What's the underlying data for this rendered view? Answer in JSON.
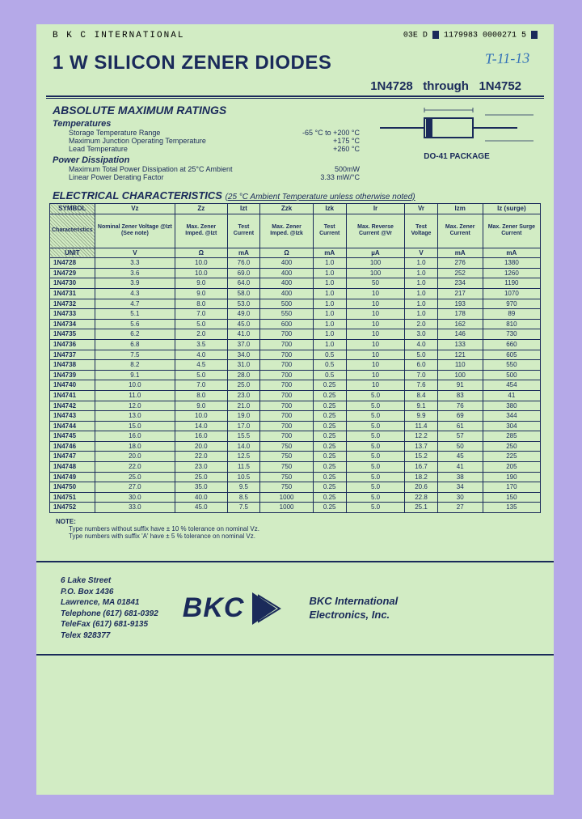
{
  "header": {
    "company": "B K C INTERNATIONAL",
    "doccode": "03E D",
    "barcode": "1179983 0000271 5",
    "handwritten": "T-11-13"
  },
  "title": "1 W SILICON ZENER DIODES",
  "subtitle_a": "1N4728",
  "subtitle_mid": "through",
  "subtitle_b": "1N4752",
  "abs": {
    "title": "ABSOLUTE MAXIMUM RATINGS",
    "temps_label": "Temperatures",
    "temps": [
      {
        "l": "Storage Temperature Range",
        "v": "-65 °C to +200 °C"
      },
      {
        "l": "Maximum Junction Operating Temperature",
        "v": "+175 °C"
      },
      {
        "l": "Lead Temperature",
        "v": "+260 °C"
      }
    ],
    "power_label": "Power Dissipation",
    "power": [
      {
        "l": "Maximum Total Power Dissipation at 25°C Ambient",
        "v": "500mW"
      },
      {
        "l": "Linear Power Derating Factor",
        "v": "3.33 mW/°C"
      }
    ],
    "package": "DO-41 PACKAGE"
  },
  "elec": {
    "title": "ELECTRICAL CHARACTERISTICS",
    "note": "(25 °C Ambient Temperature unless otherwise noted)"
  },
  "table": {
    "symbol_label": "SYMBOL",
    "char_label": "Characteristics",
    "unit_label": "UNIT",
    "symbols": [
      "Vz",
      "Zz",
      "Izt",
      "Zzk",
      "Izk",
      "Ir",
      "Vr",
      "Izm",
      "Iz (surge)"
    ],
    "chars": [
      "Nominal Zener Voltage @Izt (See note)",
      "Max. Zener Imped. @Izt",
      "Test Current",
      "Max. Zener Imped. @Izk",
      "Test Current",
      "Max. Reverse Current @Vr",
      "Test Voltage",
      "Max. Zener Current",
      "Max. Zener Surge Current"
    ],
    "units": [
      "V",
      "Ω",
      "mA",
      "Ω",
      "mA",
      "µA",
      "V",
      "mA",
      "mA"
    ],
    "rows": [
      [
        "1N4728",
        "3.3",
        "10.0",
        "76.0",
        "400",
        "1.0",
        "100",
        "1.0",
        "276",
        "1380"
      ],
      [
        "1N4729",
        "3.6",
        "10.0",
        "69.0",
        "400",
        "1.0",
        "100",
        "1.0",
        "252",
        "1260"
      ],
      [
        "1N4730",
        "3.9",
        "9.0",
        "64.0",
        "400",
        "1.0",
        "50",
        "1.0",
        "234",
        "1190"
      ],
      [
        "1N4731",
        "4.3",
        "9.0",
        "58.0",
        "400",
        "1.0",
        "10",
        "1.0",
        "217",
        "1070"
      ],
      [
        "1N4732",
        "4.7",
        "8.0",
        "53.0",
        "500",
        "1.0",
        "10",
        "1.0",
        "193",
        "970"
      ],
      [
        "1N4733",
        "5.1",
        "7.0",
        "49.0",
        "550",
        "1.0",
        "10",
        "1.0",
        "178",
        "89"
      ],
      [
        "1N4734",
        "5.6",
        "5.0",
        "45.0",
        "600",
        "1.0",
        "10",
        "2.0",
        "162",
        "810"
      ],
      [
        "1N4735",
        "6.2",
        "2.0",
        "41.0",
        "700",
        "1.0",
        "10",
        "3.0",
        "146",
        "730"
      ],
      [
        "1N4736",
        "6.8",
        "3.5",
        "37.0",
        "700",
        "1.0",
        "10",
        "4.0",
        "133",
        "660"
      ],
      [
        "1N4737",
        "7.5",
        "4.0",
        "34.0",
        "700",
        "0.5",
        "10",
        "5.0",
        "121",
        "605"
      ],
      [
        "1N4738",
        "8.2",
        "4.5",
        "31.0",
        "700",
        "0.5",
        "10",
        "6.0",
        "110",
        "550"
      ],
      [
        "1N4739",
        "9.1",
        "5.0",
        "28.0",
        "700",
        "0.5",
        "10",
        "7.0",
        "100",
        "500"
      ],
      [
        "1N4740",
        "10.0",
        "7.0",
        "25.0",
        "700",
        "0.25",
        "10",
        "7.6",
        "91",
        "454"
      ],
      [
        "1N4741",
        "11.0",
        "8.0",
        "23.0",
        "700",
        "0.25",
        "5.0",
        "8.4",
        "83",
        "41"
      ],
      [
        "1N4742",
        "12.0",
        "9.0",
        "21.0",
        "700",
        "0.25",
        "5.0",
        "9.1",
        "76",
        "380"
      ],
      [
        "1N4743",
        "13.0",
        "10.0",
        "19.0",
        "700",
        "0.25",
        "5.0",
        "9.9",
        "69",
        "344"
      ],
      [
        "1N4744",
        "15.0",
        "14.0",
        "17.0",
        "700",
        "0.25",
        "5.0",
        "11.4",
        "61",
        "304"
      ],
      [
        "1N4745",
        "16.0",
        "16.0",
        "15.5",
        "700",
        "0.25",
        "5.0",
        "12.2",
        "57",
        "285"
      ],
      [
        "1N4746",
        "18.0",
        "20.0",
        "14.0",
        "750",
        "0.25",
        "5.0",
        "13.7",
        "50",
        "250"
      ],
      [
        "1N4747",
        "20.0",
        "22.0",
        "12.5",
        "750",
        "0.25",
        "5.0",
        "15.2",
        "45",
        "225"
      ],
      [
        "1N4748",
        "22.0",
        "23.0",
        "11.5",
        "750",
        "0.25",
        "5.0",
        "16.7",
        "41",
        "205"
      ],
      [
        "1N4749",
        "25.0",
        "25.0",
        "10.5",
        "750",
        "0.25",
        "5.0",
        "18.2",
        "38",
        "190"
      ],
      [
        "1N4750",
        "27.0",
        "35.0",
        "9.5",
        "750",
        "0.25",
        "5.0",
        "20.6",
        "34",
        "170"
      ],
      [
        "1N4751",
        "30.0",
        "40.0",
        "8.5",
        "1000",
        "0.25",
        "5.0",
        "22.8",
        "30",
        "150"
      ],
      [
        "1N4752",
        "33.0",
        "45.0",
        "7.5",
        "1000",
        "0.25",
        "5.0",
        "25.1",
        "27",
        "135"
      ]
    ]
  },
  "notes": {
    "heading": "NOTE:",
    "lines": [
      "Type numbers without suffix have ± 10 % tolerance on nominal Vz.",
      "Type numbers with suffix 'A' have ± 5 % tolerance on nominal Vz."
    ]
  },
  "footer": {
    "addr": [
      "6 Lake Street",
      "P.O. Box 1436",
      "Lawrence, MA 01841",
      "Telephone (617) 681-0392",
      "TeleFax (617) 681-9135",
      "Telex 928377"
    ],
    "logo": "BKC",
    "company1": "BKC International",
    "company2": "Electronics, Inc."
  },
  "colors": {
    "bg": "#b5a9e8",
    "paper": "#d2ecc4",
    "ink": "#1a2a5a"
  }
}
